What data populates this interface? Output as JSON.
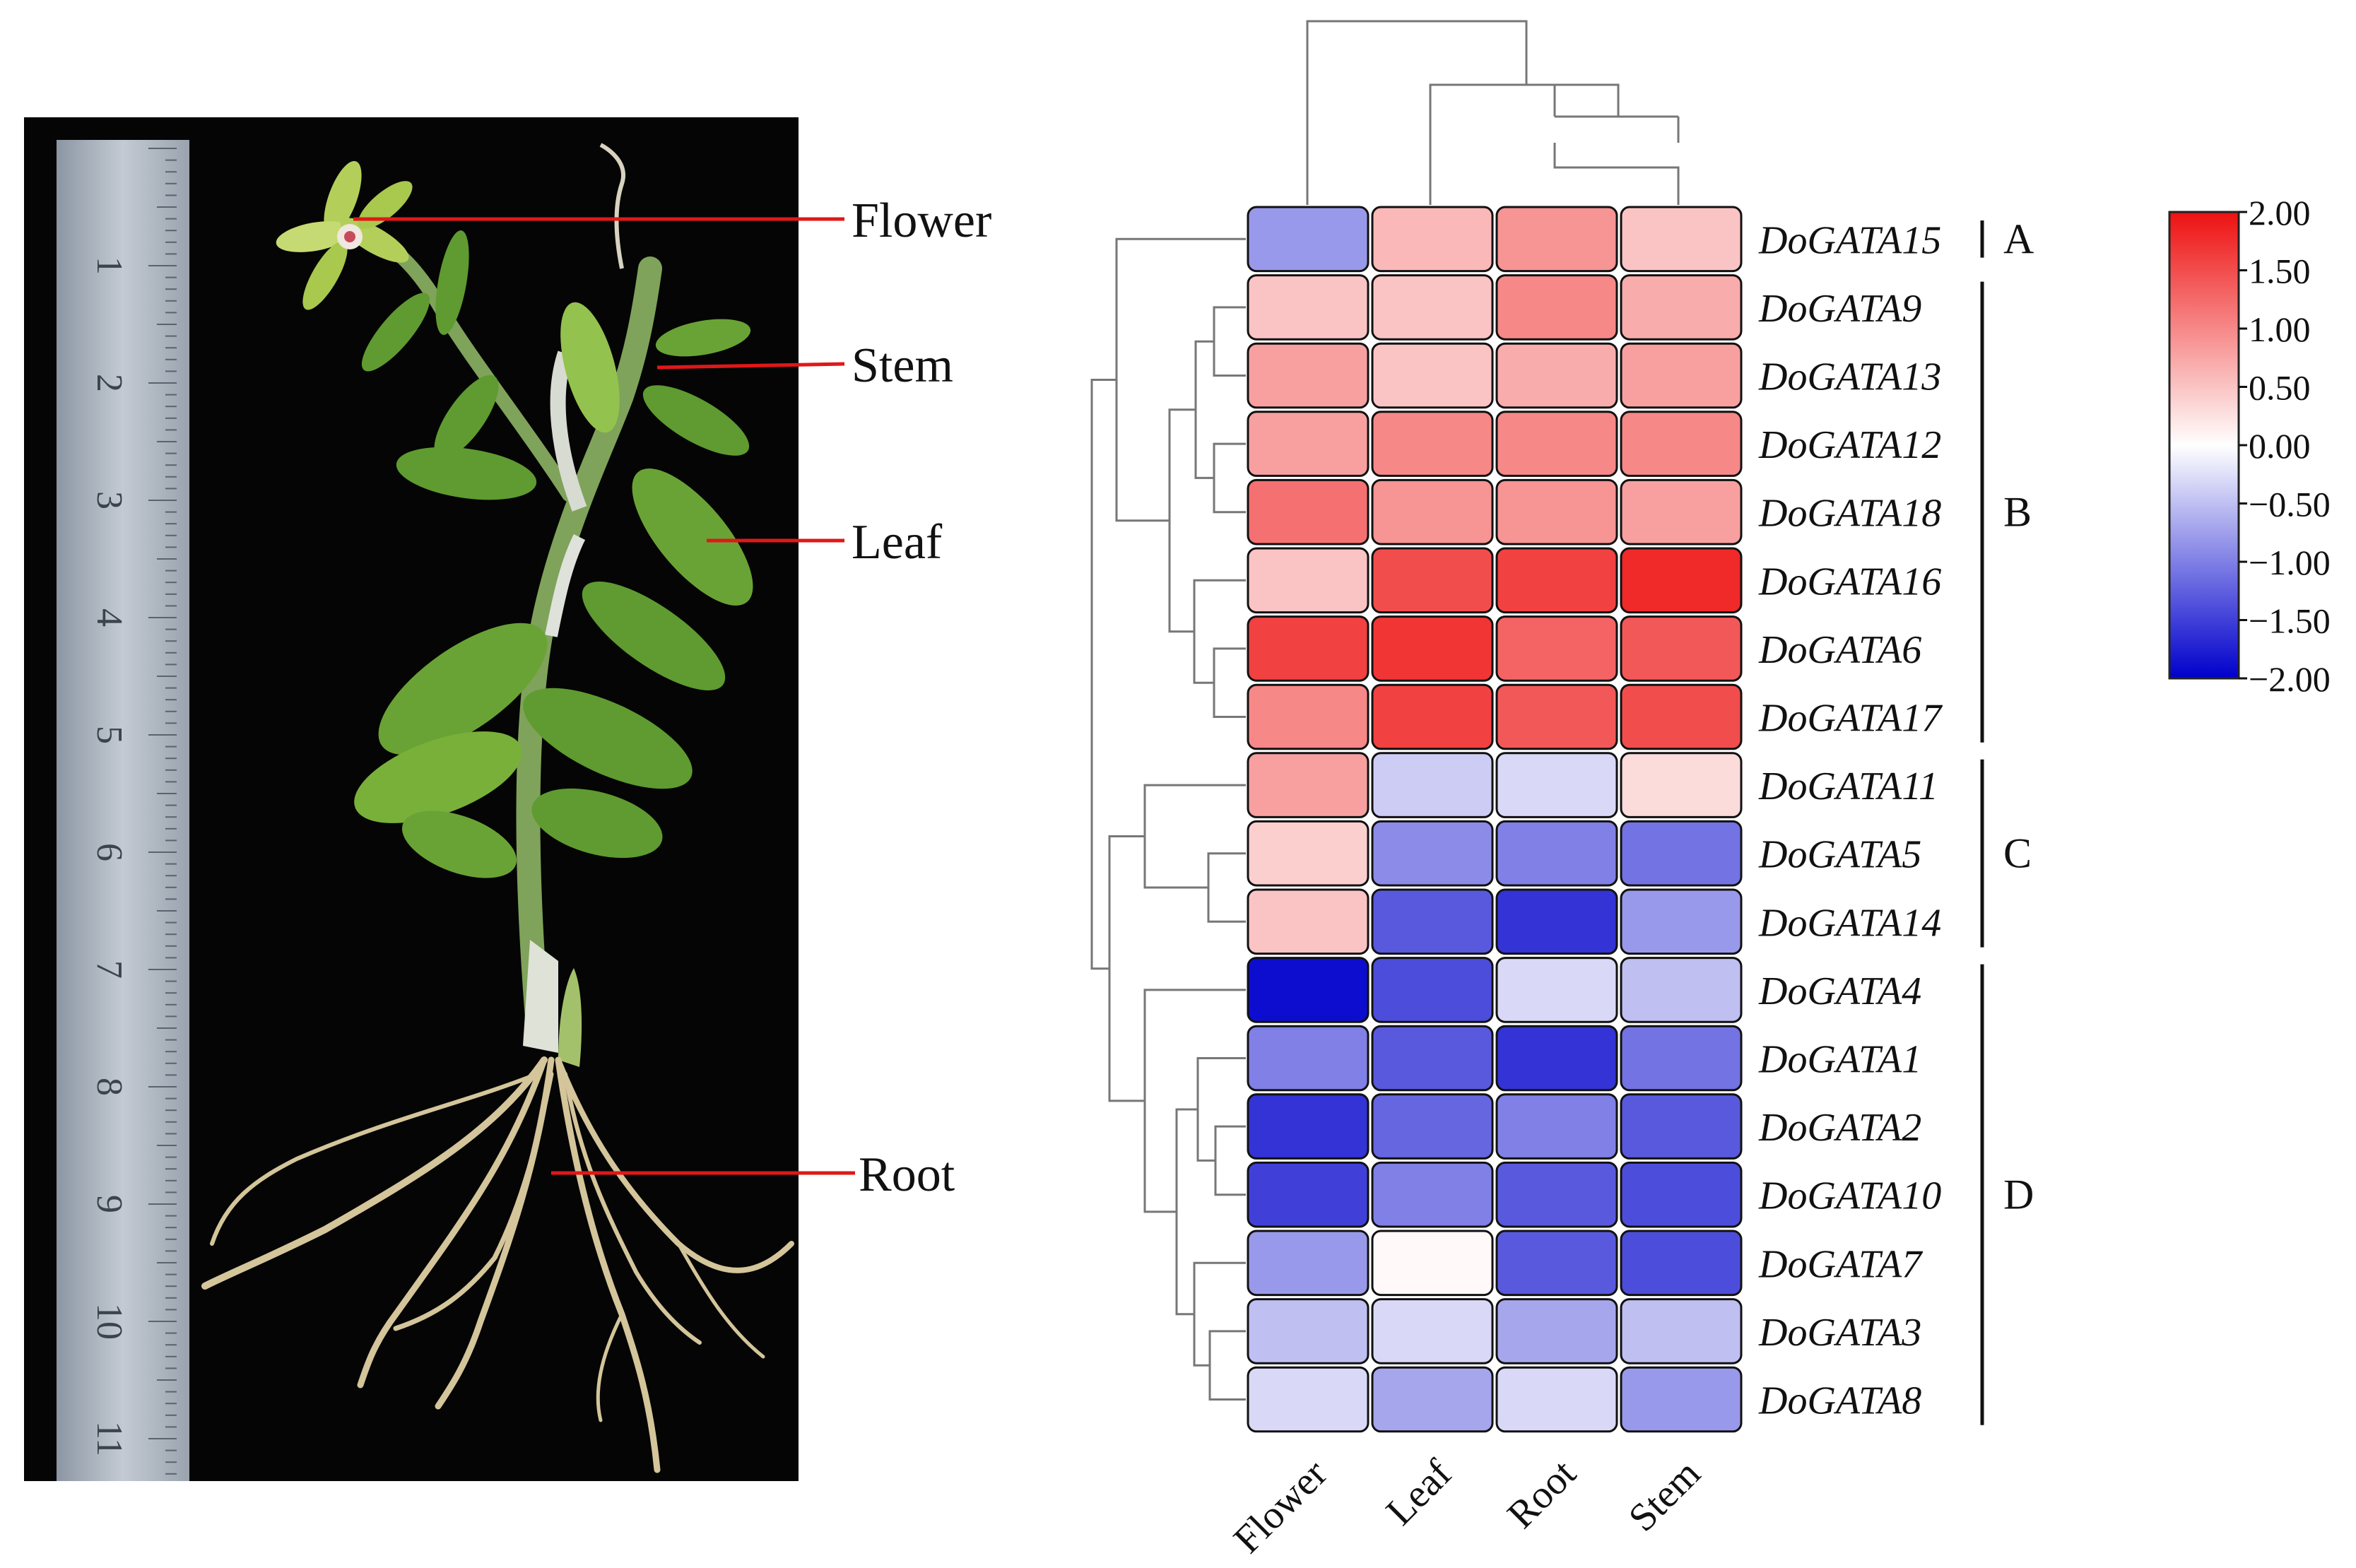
{
  "photo": {
    "ruler_marks": [
      "1",
      "2",
      "3",
      "4",
      "5",
      "6",
      "7",
      "8",
      "9",
      "10",
      "11"
    ],
    "labels": [
      "Flower",
      "Stem",
      "Leaf",
      "Root"
    ]
  },
  "chart_data": {
    "type": "heatmap",
    "columns": [
      "Flower",
      "Leaf",
      "Root",
      "Stem"
    ],
    "rows": [
      "DoGATA15",
      "DoGATA9",
      "DoGATA13",
      "DoGATA12",
      "DoGATA18",
      "DoGATA16",
      "DoGATA6",
      "DoGATA17",
      "DoGATA11",
      "DoGATA5",
      "DoGATA14",
      "DoGATA4",
      "DoGATA1",
      "DoGATA2",
      "DoGATA10",
      "DoGATA7",
      "DoGATA3",
      "DoGATA8"
    ],
    "values": [
      [
        -0.8,
        0.6,
        0.9,
        0.5
      ],
      [
        0.5,
        0.5,
        1.0,
        0.7
      ],
      [
        0.8,
        0.5,
        0.7,
        0.8
      ],
      [
        0.8,
        1.0,
        1.0,
        1.0
      ],
      [
        1.2,
        0.9,
        0.9,
        0.8
      ],
      [
        0.5,
        1.5,
        1.6,
        1.8
      ],
      [
        1.6,
        1.7,
        1.3,
        1.4
      ],
      [
        1.0,
        1.6,
        1.4,
        1.5
      ],
      [
        0.8,
        -0.4,
        -0.3,
        0.3
      ],
      [
        0.4,
        -0.9,
        -1.0,
        -1.1
      ],
      [
        0.5,
        -1.3,
        -1.6,
        -0.8
      ],
      [
        -1.9,
        -1.4,
        -0.3,
        -0.5
      ],
      [
        -1.0,
        -1.3,
        -1.6,
        -1.1
      ],
      [
        -1.6,
        -1.2,
        -1.0,
        -1.3
      ],
      [
        -1.5,
        -1.0,
        -1.3,
        -1.4
      ],
      [
        -0.8,
        0.05,
        -1.3,
        -1.4
      ],
      [
        -0.5,
        -0.3,
        -0.7,
        -0.5
      ],
      [
        -0.3,
        -0.7,
        -0.3,
        -0.8
      ]
    ],
    "groups": [
      {
        "label": "A",
        "from": 0,
        "to": 0
      },
      {
        "label": "B",
        "from": 1,
        "to": 7
      },
      {
        "label": "C",
        "from": 8,
        "to": 10
      },
      {
        "label": "D",
        "from": 11,
        "to": 17
      }
    ],
    "colorbar": {
      "min": -2.0,
      "max": 2.0,
      "ticks": [
        "2.00",
        "1.50",
        "1.00",
        "0.50",
        "0.00",
        "−0.50",
        "−1.00",
        "−1.50",
        "−2.00"
      ],
      "colors": {
        "low": "#0000cc",
        "mid": "#ffffff",
        "high": "#ee1111"
      }
    }
  }
}
